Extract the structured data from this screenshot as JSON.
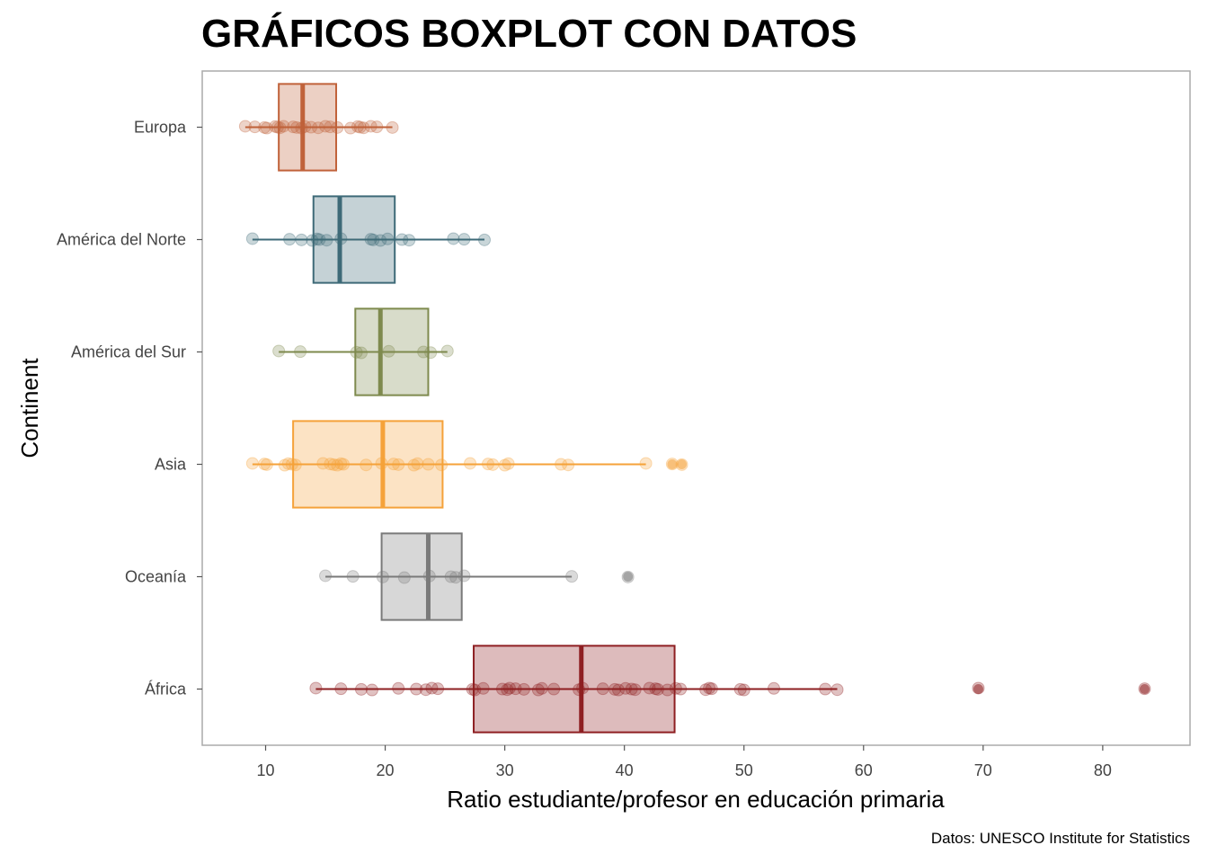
{
  "chart_data": {
    "type": "boxplot",
    "orientation": "horizontal",
    "title": "GRÁFICOS BOXPLOT CON DATOS",
    "xlabel": "Ratio estudiante/profesor en educación primaria",
    "ylabel": "Continent",
    "caption": "Datos: UNESCO Institute for Statistics",
    "xlim": [
      4.7,
      87.3
    ],
    "xticks": [
      10,
      20,
      30,
      40,
      50,
      60,
      70,
      80
    ],
    "grid": false,
    "legend": "none",
    "categories": [
      "Europa",
      "América del Norte",
      "América del Sur",
      "Asia",
      "Oceanía",
      "África"
    ],
    "series": [
      {
        "name": "Europa",
        "color": "#C0623A",
        "q1": 11.1,
        "median": 13.1,
        "q3": 15.9,
        "whisker_low": 8.3,
        "whisker_high": 20.6,
        "outliers": [],
        "points": [
          8.3,
          9.1,
          9.9,
          10.1,
          10.8,
          11.0,
          11.2,
          11.5,
          12.3,
          12.6,
          13.0,
          13.3,
          13.8,
          14.4,
          15.0,
          15.4,
          16.0,
          17.1,
          17.7,
          17.9,
          18.2,
          18.8,
          19.3,
          20.6
        ]
      },
      {
        "name": "América del Norte",
        "color": "#3E6A78",
        "q1": 14.0,
        "median": 16.2,
        "q3": 20.8,
        "whisker_low": 8.9,
        "whisker_high": 28.3,
        "outliers": [],
        "points": [
          8.9,
          12.0,
          13.0,
          13.9,
          14.3,
          14.5,
          15.1,
          16.3,
          18.8,
          19.0,
          19.6,
          20.2,
          21.4,
          22.0,
          25.7,
          26.6,
          28.3
        ]
      },
      {
        "name": "América del Sur",
        "color": "#7E8A4E",
        "q1": 17.5,
        "median": 19.6,
        "q3": 23.6,
        "whisker_low": 11.1,
        "whisker_high": 25.2,
        "outliers": [],
        "points": [
          11.1,
          12.9,
          17.6,
          18.0,
          20.3,
          23.2,
          23.8,
          25.2
        ]
      },
      {
        "name": "Asia",
        "color": "#F5A23A",
        "q1": 12.3,
        "median": 19.8,
        "q3": 24.8,
        "whisker_low": 8.9,
        "whisker_high": 41.8,
        "outliers": [
          44.0,
          44.8
        ],
        "points": [
          8.9,
          9.9,
          10.1,
          11.6,
          11.9,
          12.2,
          12.5,
          14.8,
          15.4,
          15.7,
          16.0,
          16.3,
          16.5,
          18.4,
          19.7,
          20.7,
          21.1,
          22.4,
          22.7,
          23.6,
          24.7,
          27.1,
          28.6,
          29.0,
          30.0,
          30.3,
          34.7,
          35.3,
          41.8
        ]
      },
      {
        "name": "Oceanía",
        "color": "#7A7A7A",
        "q1": 19.7,
        "median": 23.6,
        "q3": 26.4,
        "whisker_low": 15.0,
        "whisker_high": 35.6,
        "outliers": [
          40.3
        ],
        "points": [
          15.0,
          17.3,
          19.8,
          21.6,
          23.7,
          25.5,
          25.9,
          26.6,
          35.6
        ]
      },
      {
        "name": "África",
        "color": "#8E1F22",
        "q1": 27.4,
        "median": 36.4,
        "q3": 44.2,
        "whisker_low": 14.2,
        "whisker_high": 57.8,
        "outliers": [
          69.6,
          83.5
        ],
        "points": [
          14.2,
          16.3,
          18.0,
          18.9,
          21.1,
          22.6,
          23.4,
          23.9,
          24.4,
          27.3,
          27.5,
          28.2,
          29.8,
          30.2,
          30.4,
          30.9,
          31.6,
          32.8,
          33.1,
          34.1,
          36.2,
          36.5,
          38.2,
          39.2,
          39.5,
          40.1,
          40.6,
          40.9,
          42.1,
          42.6,
          42.8,
          43.6,
          44.3,
          44.7,
          46.8,
          47.1,
          47.3,
          49.7,
          50.0,
          52.5,
          56.8,
          57.8
        ]
      }
    ]
  }
}
